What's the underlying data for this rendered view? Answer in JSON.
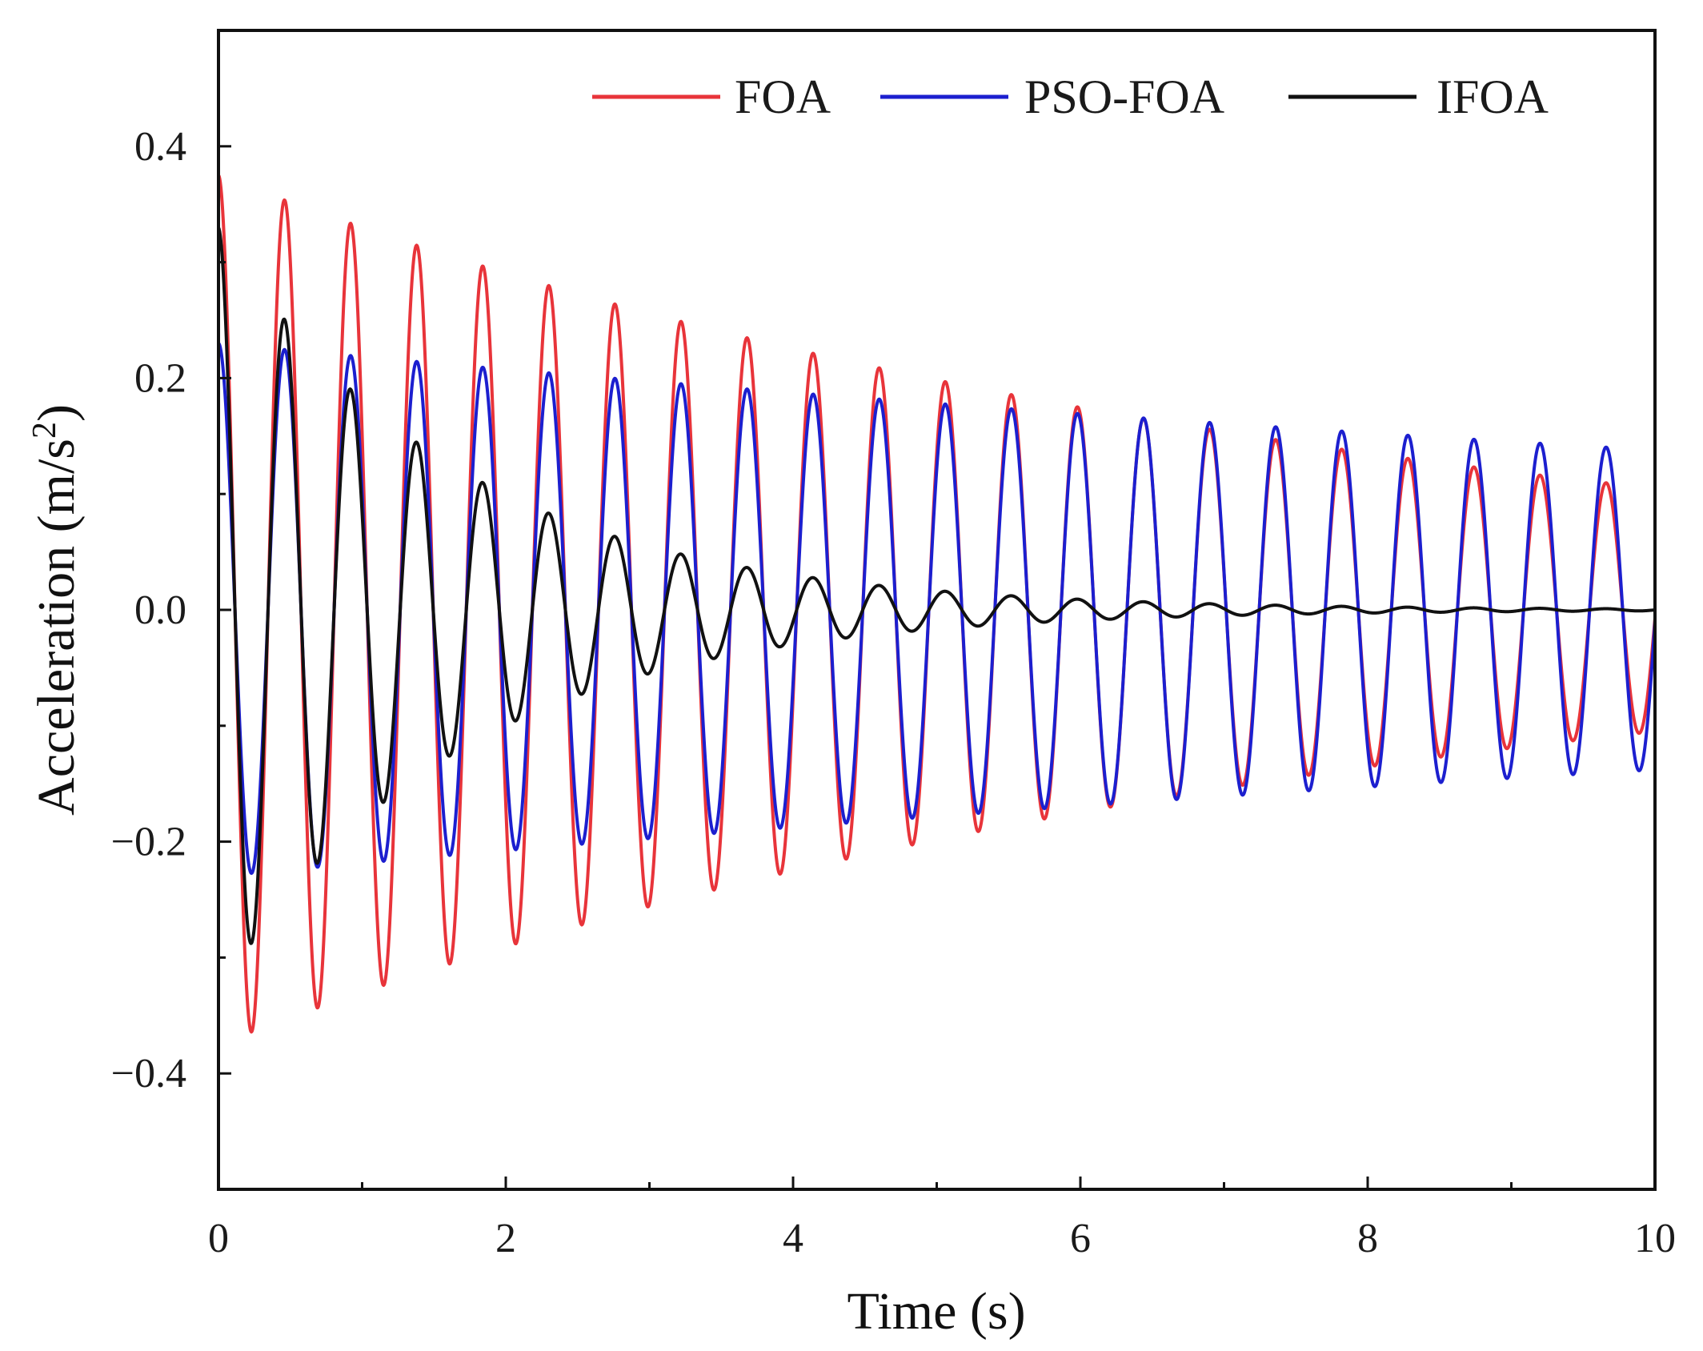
{
  "chart_data": {
    "type": "line",
    "title": "",
    "xlabel": "Time (s)",
    "ylabel_main": "Acceleration (m/s",
    "ylabel_sup": "2",
    "ylabel_close": ")",
    "xlim": [
      0,
      10
    ],
    "ylim": [
      -0.5,
      0.5
    ],
    "xticks": [
      0,
      2,
      4,
      6,
      8,
      10
    ],
    "xtick_labels": [
      "0",
      "2",
      "4",
      "6",
      "8",
      "10"
    ],
    "yticks": [
      -0.4,
      -0.2,
      0.0,
      0.2,
      0.4
    ],
    "ytick_labels": [
      "−0.4",
      "−0.2",
      "0.0",
      "0.2",
      "0.4"
    ],
    "legend_position": "top-right",
    "series": [
      {
        "name": "FOA",
        "color": "#e8343a",
        "model": "damped-cosine",
        "initial_amplitude": 0.375,
        "peak_at_t10": 0.105,
        "period_s": 0.46,
        "samples_t": [
          0,
          0.46,
          0.92,
          1.38,
          1.84,
          2.3,
          2.76,
          3.22,
          3.68,
          4.14,
          4.6,
          5.06,
          5.52,
          5.98,
          6.44,
          6.9,
          7.36,
          7.82,
          8.28,
          8.74,
          9.2,
          9.66
        ],
        "samples_peak": [
          0.375,
          0.355,
          0.335,
          0.315,
          0.298,
          0.281,
          0.266,
          0.252,
          0.238,
          0.225,
          0.212,
          0.2,
          0.189,
          0.178,
          0.168,
          0.158,
          0.148,
          0.139,
          0.131,
          0.123,
          0.116,
          0.109
        ]
      },
      {
        "name": "PSO-FOA",
        "color": "#1c1fcf",
        "model": "damped-cosine",
        "initial_amplitude": 0.23,
        "peak_at_t10": 0.138,
        "period_s": 0.46,
        "samples_t": [
          0,
          0.46,
          0.92,
          1.38,
          1.84,
          2.3,
          2.76,
          3.22,
          3.68,
          4.14,
          4.6,
          5.06,
          5.52,
          5.98,
          6.44,
          6.9,
          7.36,
          7.82,
          8.28,
          8.74,
          9.2,
          9.66
        ],
        "samples_peak": [
          0.23,
          0.22,
          0.215,
          0.21,
          0.205,
          0.2,
          0.195,
          0.19,
          0.185,
          0.181,
          0.177,
          0.173,
          0.169,
          0.165,
          0.161,
          0.158,
          0.155,
          0.152,
          0.149,
          0.146,
          0.143,
          0.14
        ]
      },
      {
        "name": "IFOA",
        "color": "#111111",
        "model": "damped-cosine",
        "initial_amplitude": 0.33,
        "peak_at_t10": 0.0,
        "period_s": 0.46,
        "samples_t": [
          0,
          0.46,
          0.92,
          1.38,
          1.84,
          2.3,
          2.76,
          3.22,
          3.68,
          4.14,
          4.6,
          5.06,
          5.52,
          5.98,
          6.44,
          6.9,
          7.36,
          7.82,
          8.28,
          8.74,
          9.2,
          9.66
        ],
        "samples_peak": [
          0.33,
          0.235,
          0.175,
          0.135,
          0.1,
          0.075,
          0.056,
          0.042,
          0.032,
          0.024,
          0.018,
          0.013,
          0.01,
          0.008,
          0.006,
          0.005,
          0.004,
          0.003,
          0.002,
          0.002,
          0.001,
          0.001
        ]
      }
    ]
  }
}
